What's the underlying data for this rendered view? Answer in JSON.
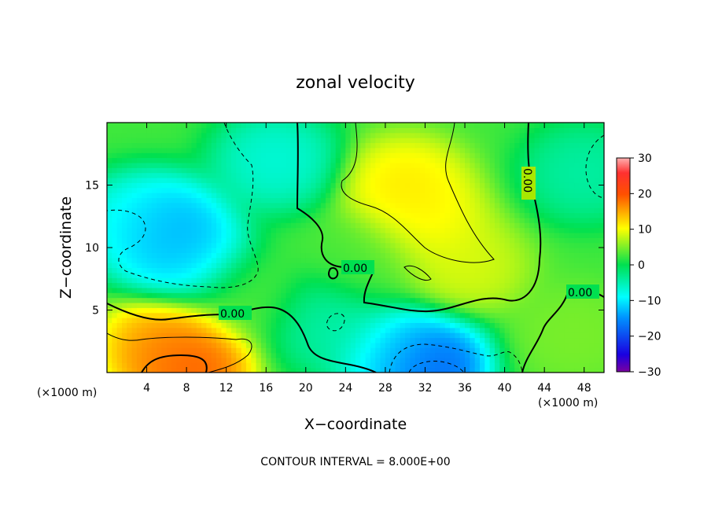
{
  "chart_data": {
    "type": "heatmap",
    "title": "zonal velocity",
    "xlabel": "X−coordinate",
    "ylabel": "Z−coordinate",
    "x_unit_label": "(×1000 m)",
    "z_unit_label": "(×1000 m)",
    "xlim": [
      0,
      50
    ],
    "ylim": [
      0,
      20
    ],
    "x_ticks": [
      4,
      8,
      12,
      16,
      20,
      24,
      28,
      32,
      36,
      40,
      44,
      48
    ],
    "y_ticks": [
      5,
      10,
      15
    ],
    "colorbar": {
      "range": [
        -30,
        30
      ],
      "ticks": [
        30,
        20,
        10,
        0,
        -10,
        -20,
        -30
      ],
      "tick_labels": [
        "30",
        "20",
        "10",
        "0",
        "−10",
        "−20",
        "−30"
      ]
    },
    "contour_interval_text": "CONTOUR INTERVAL = 8.000E+00",
    "contour_labels": [
      "0.00",
      "0.00",
      "0.00",
      "0.00"
    ],
    "features": [
      {
        "x": 17,
        "z": 17,
        "value": -8
      },
      {
        "x": 6,
        "z": 11.5,
        "value": -16
      },
      {
        "x": 8,
        "z": 9,
        "value": -12
      },
      {
        "x": 3,
        "z": 12,
        "value": -9
      },
      {
        "x": 26,
        "z": 9,
        "value": 3
      },
      {
        "x": 30,
        "z": 15,
        "value": 12
      },
      {
        "x": 32,
        "z": 12,
        "value": 11
      },
      {
        "x": 36,
        "z": 8.5,
        "value": 9
      },
      {
        "x": 8,
        "z": 1,
        "value": 22
      },
      {
        "x": 6,
        "z": 2.3,
        "value": 16
      },
      {
        "x": 32,
        "z": 0.7,
        "value": -22
      },
      {
        "x": 29,
        "z": 1.5,
        "value": -10
      },
      {
        "x": 22,
        "z": 4,
        "value": -5
      },
      {
        "x": 48,
        "z": 16,
        "value": -5
      },
      {
        "x": 47,
        "z": 3,
        "value": 5
      },
      {
        "x": 14,
        "z": 6,
        "value": 3
      }
    ]
  }
}
